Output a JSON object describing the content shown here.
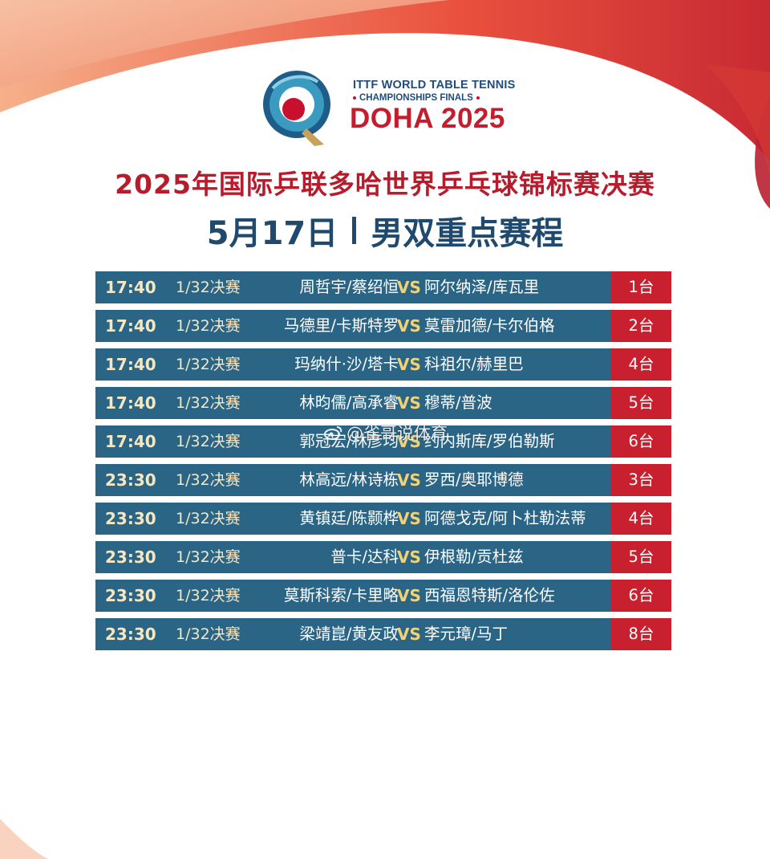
{
  "brand": {
    "line1": "ITTF WORLD TABLE TENNIS",
    "line2": "CHAMPIONSHIPS FINALS",
    "line3": "DOHA 2025"
  },
  "header": {
    "title": "2025年国际乒联多哈世界乒乓球锦标赛决赛",
    "date": "5月17日",
    "event": "男双重点赛程"
  },
  "schedule": [
    {
      "time": "17:40",
      "round": "1/32决赛",
      "left": "周哲宇/蔡绍恒",
      "vs": "VS",
      "right": "阿尔纳泽/库瓦里",
      "table": "1台"
    },
    {
      "time": "17:40",
      "round": "1/32决赛",
      "left": "马德里/卡斯特罗",
      "vs": "VS",
      "right": "莫雷加德/卡尔伯格",
      "table": "2台"
    },
    {
      "time": "17:40",
      "round": "1/32决赛",
      "left": "玛纳什·沙/塔卡",
      "vs": "VS",
      "right": "科祖尔/赫里巴",
      "table": "4台"
    },
    {
      "time": "17:40",
      "round": "1/32决赛",
      "left": "林昀儒/高承睿",
      "vs": "VS",
      "right": "穆蒂/普波",
      "table": "5台"
    },
    {
      "time": "17:40",
      "round": "1/32决赛",
      "left": "郭冠宏/林彦均",
      "vs": "VS",
      "right": "约内斯库/罗伯勒斯",
      "table": "6台"
    },
    {
      "time": "23:30",
      "round": "1/32决赛",
      "left": "林高远/林诗栋",
      "vs": "VS",
      "right": "罗西/奥耶博德",
      "table": "3台"
    },
    {
      "time": "23:30",
      "round": "1/32决赛",
      "left": "黄镇廷/陈颢桦",
      "vs": "VS",
      "right": "阿德戈克/阿卜杜勒法蒂",
      "table": "4台"
    },
    {
      "time": "23:30",
      "round": "1/32决赛",
      "left": "普卡/达科",
      "vs": "VS",
      "right": "伊根勒/贡杜兹",
      "table": "5台"
    },
    {
      "time": "23:30",
      "round": "1/32决赛",
      "left": "莫斯科索/卡里略",
      "vs": "VS",
      "right": "西福恩特斯/洛伦佐",
      "table": "6台"
    },
    {
      "time": "23:30",
      "round": "1/32决赛",
      "left": "梁靖崑/黄友政",
      "vs": "VS",
      "right": "李元璋/马丁",
      "table": "8台"
    }
  ],
  "watermark": "@雀哥说体育",
  "colors": {
    "row_bg": "#2b6586",
    "table_bg": "#c8202f",
    "title_red": "#b71c2c",
    "title_blue": "#1f4a6d"
  }
}
